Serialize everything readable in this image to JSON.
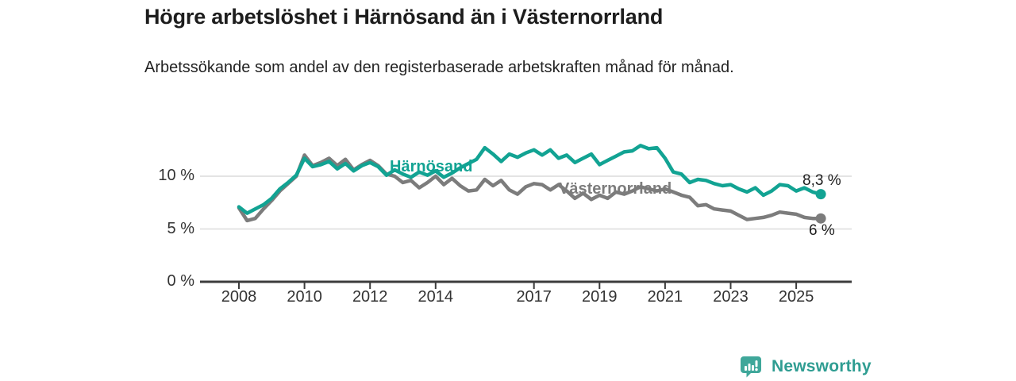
{
  "header": {
    "title": "Högre arbetslöshet i Härnösand än i Västernorrland",
    "subtitle": "Arbetssökande som andel av den registerbaserade arbetskraften månad för månad."
  },
  "footer": {
    "brand": "Newsworthy",
    "brand_color": "#2f9d92",
    "icon_color": "#3fa79a",
    "icon_bar_color": "#ffffff"
  },
  "style_colors": {
    "title_text": "#1d1d1d",
    "axis_text": "#333333",
    "gridline": "#dcdcdc",
    "axis_line": "#3c3c3c",
    "end_label_text": "#1d1d1d"
  },
  "chart_data": {
    "type": "line",
    "title": "Högre arbetslöshet i Härnösand än i Västernorrland",
    "subtitle": "Arbetssökande som andel av den registerbaserade arbetskraften månad för månad.",
    "xlabel": "",
    "ylabel": "",
    "unit": "percent",
    "grid": "horizontal",
    "legend": "inline-labels",
    "xlim": [
      2008,
      2026.6
    ],
    "ylim": [
      0,
      14
    ],
    "y_ticks": [
      {
        "value": 0,
        "label": "0 %"
      },
      {
        "value": 5,
        "label": "5 %"
      },
      {
        "value": 10,
        "label": "10 %"
      }
    ],
    "x_ticks": [
      {
        "value": 2008,
        "label": "2008"
      },
      {
        "value": 2010,
        "label": "2010"
      },
      {
        "value": 2012,
        "label": "2012"
      },
      {
        "value": 2014,
        "label": "2014"
      },
      {
        "value": 2017,
        "label": "2017"
      },
      {
        "value": 2019,
        "label": "2019"
      },
      {
        "value": 2021,
        "label": "2021"
      },
      {
        "value": 2023,
        "label": "2023"
      },
      {
        "value": 2025,
        "label": "2025"
      }
    ],
    "x": [
      2008.0,
      2008.25,
      2008.5,
      2008.75,
      2009.0,
      2009.25,
      2009.5,
      2009.75,
      2010.0,
      2010.25,
      2010.5,
      2010.75,
      2011.0,
      2011.25,
      2011.5,
      2011.75,
      2012.0,
      2012.25,
      2012.5,
      2012.75,
      2013.0,
      2013.25,
      2013.5,
      2013.75,
      2014.0,
      2014.25,
      2014.5,
      2014.75,
      2015.0,
      2015.25,
      2015.5,
      2015.75,
      2016.0,
      2016.25,
      2016.5,
      2016.75,
      2017.0,
      2017.25,
      2017.5,
      2017.75,
      2018.0,
      2018.25,
      2018.5,
      2018.75,
      2019.0,
      2019.25,
      2019.5,
      2019.75,
      2020.0,
      2020.25,
      2020.5,
      2020.75,
      2021.0,
      2021.25,
      2021.5,
      2021.75,
      2022.0,
      2022.25,
      2022.5,
      2022.75,
      2023.0,
      2023.25,
      2023.5,
      2023.75,
      2024.0,
      2024.25,
      2024.5,
      2024.75,
      2025.0,
      2025.25,
      2025.5,
      2025.75
    ],
    "series": [
      {
        "name": "Härnösand",
        "color": "#12a393",
        "end_label": "8,3 %",
        "end_value": 8.3,
        "values": [
          7.1,
          6.5,
          6.9,
          7.3,
          7.9,
          8.8,
          9.4,
          10.1,
          11.7,
          10.9,
          11.1,
          11.4,
          10.7,
          11.2,
          10.5,
          11.0,
          11.3,
          10.9,
          10.1,
          10.6,
          10.2,
          9.9,
          10.4,
          10.1,
          10.5,
          9.9,
          10.3,
          10.8,
          11.2,
          11.6,
          12.7,
          12.1,
          11.4,
          12.1,
          11.8,
          12.2,
          12.5,
          12.0,
          12.5,
          11.7,
          12.0,
          11.3,
          11.7,
          12.1,
          11.1,
          11.5,
          11.9,
          12.3,
          12.4,
          12.9,
          12.6,
          12.7,
          11.7,
          10.4,
          10.2,
          9.4,
          9.7,
          9.6,
          9.3,
          9.1,
          9.2,
          8.8,
          8.5,
          8.9,
          8.2,
          8.6,
          9.2,
          9.1,
          8.6,
          8.9,
          8.5,
          8.3
        ]
      },
      {
        "name": "Västernorrland",
        "color": "#7c7c7c",
        "end_label": "6 %",
        "end_value": 6.0,
        "values": [
          7.0,
          5.8,
          6.0,
          6.9,
          7.7,
          8.6,
          9.3,
          10.0,
          12.0,
          11.0,
          11.3,
          11.7,
          11.0,
          11.6,
          10.6,
          11.1,
          11.5,
          11.0,
          10.2,
          10.0,
          9.4,
          9.6,
          8.9,
          9.4,
          10.0,
          9.2,
          9.8,
          9.1,
          8.6,
          8.7,
          9.7,
          9.1,
          9.6,
          8.7,
          8.3,
          9.0,
          9.3,
          9.2,
          8.7,
          9.2,
          8.6,
          7.9,
          8.4,
          7.8,
          8.2,
          7.9,
          8.5,
          8.3,
          8.6,
          9.0,
          8.8,
          8.6,
          8.8,
          8.5,
          8.2,
          8.0,
          7.2,
          7.3,
          6.9,
          6.8,
          6.7,
          6.3,
          5.9,
          6.0,
          6.1,
          6.3,
          6.6,
          6.5,
          6.4,
          6.1,
          6.0,
          6.0
        ]
      }
    ]
  }
}
